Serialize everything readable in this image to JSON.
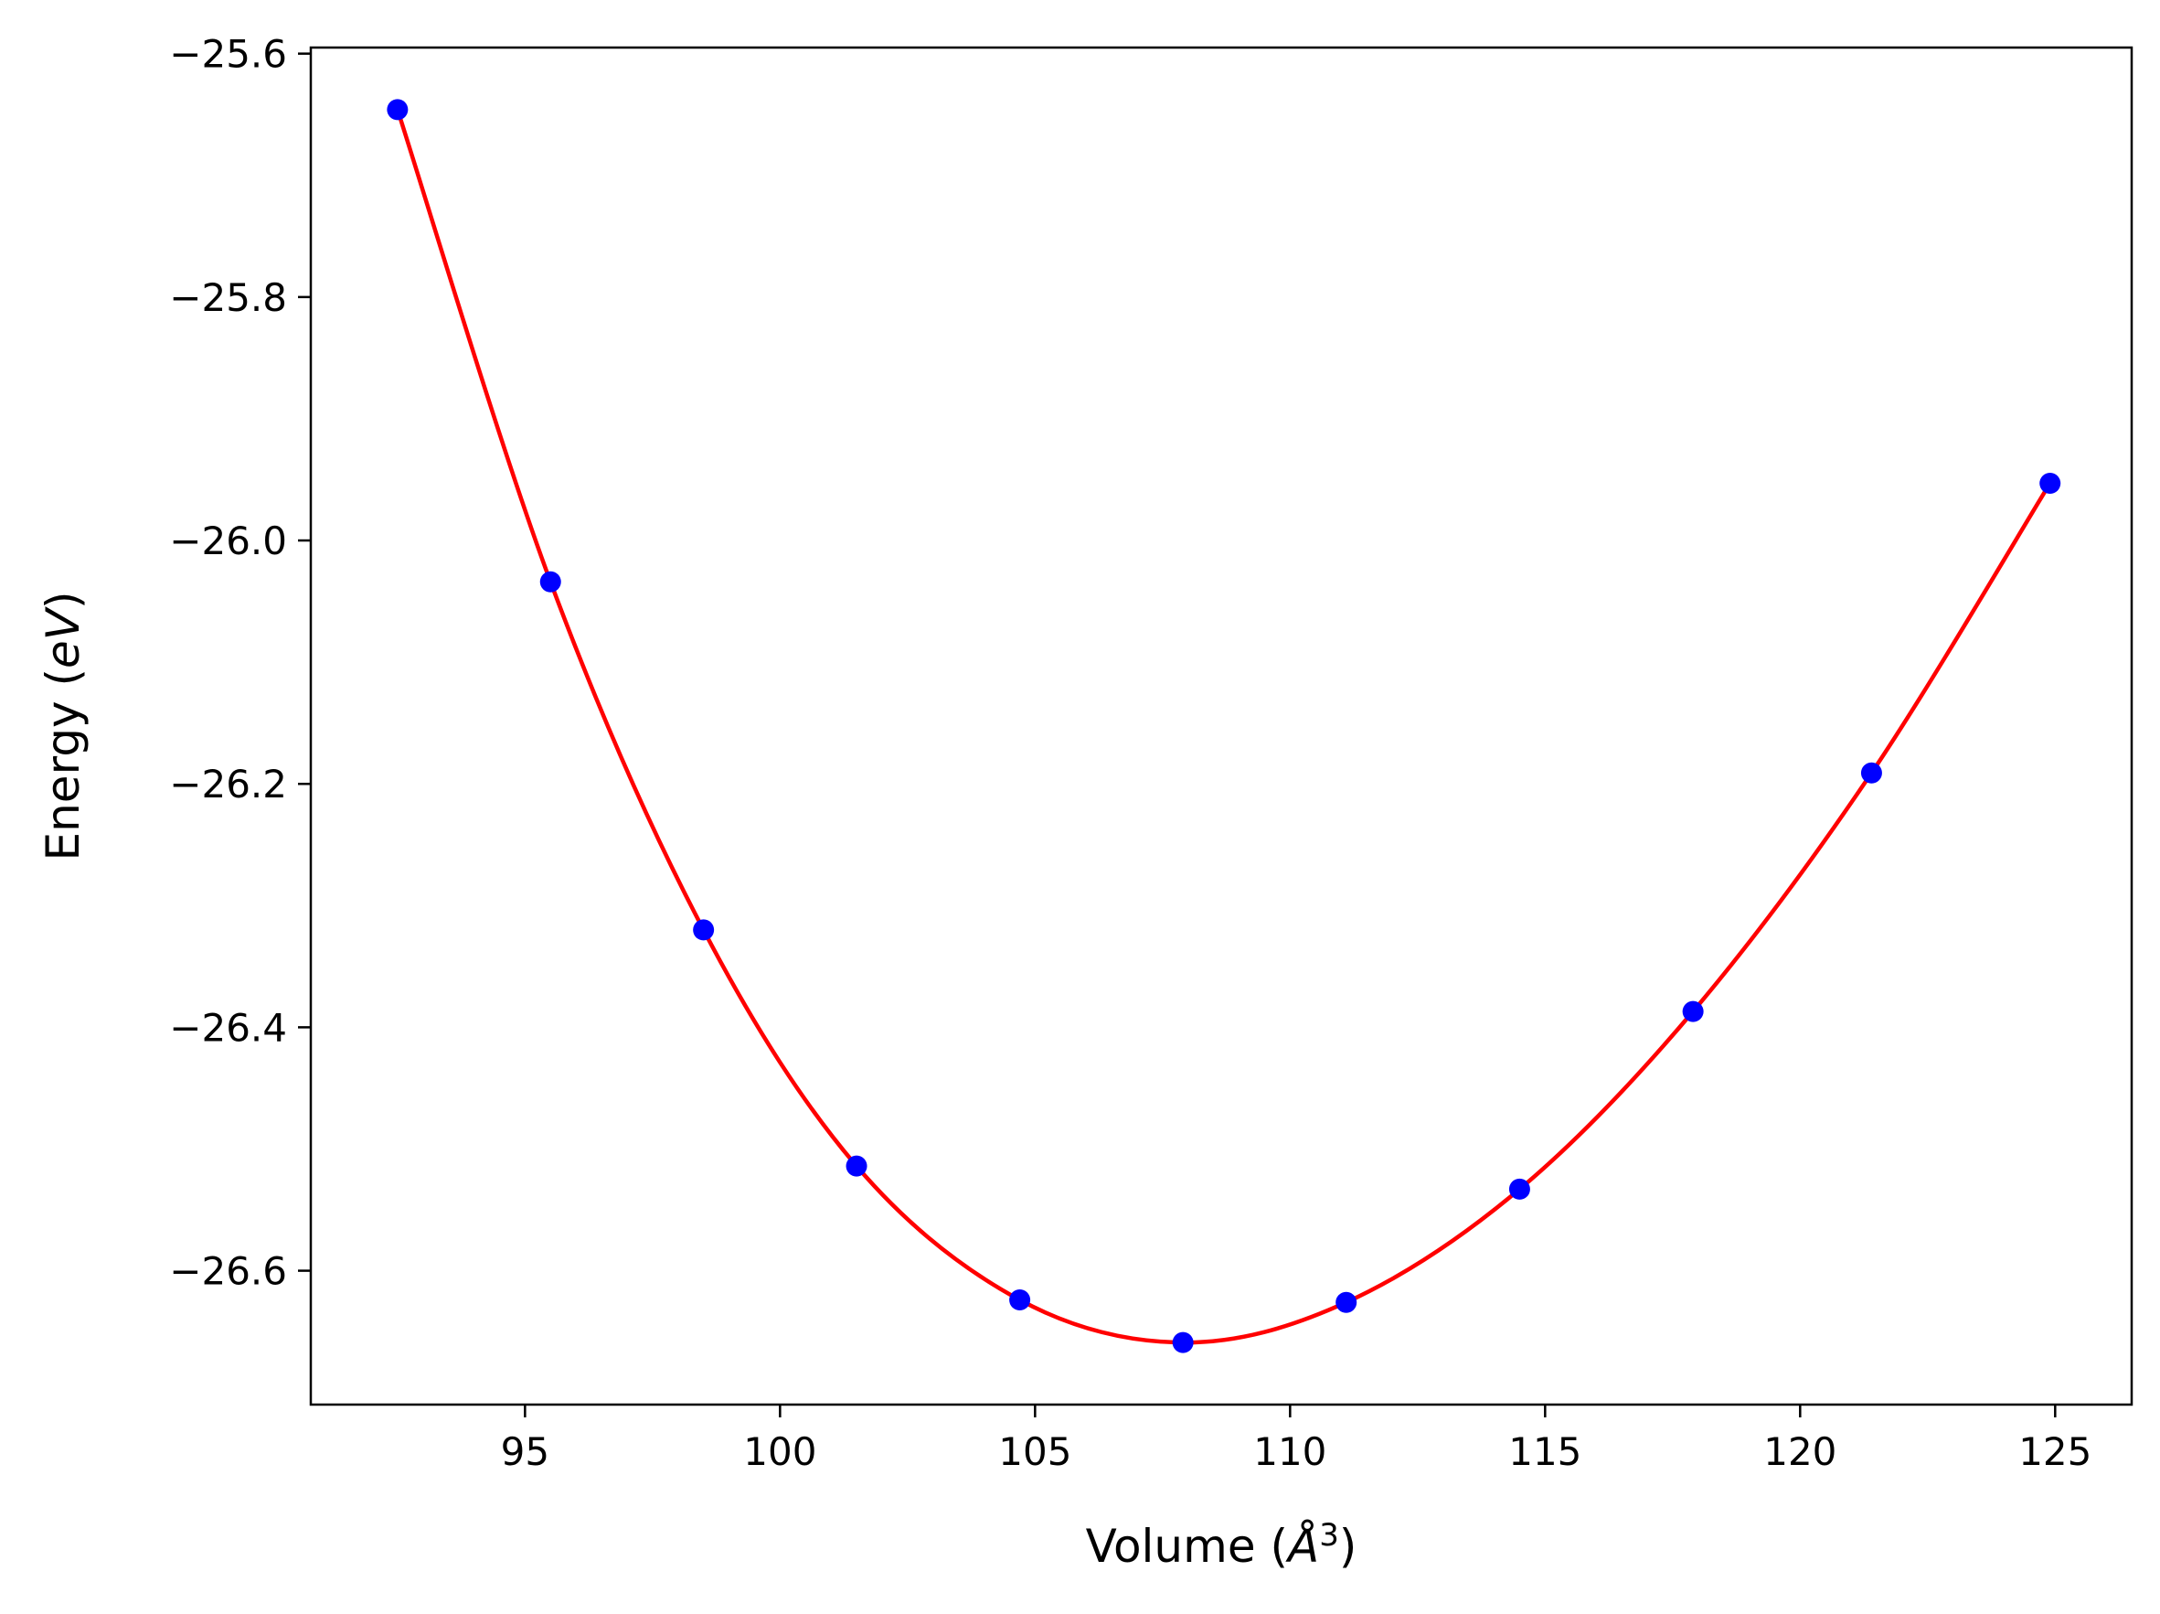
{
  "chart_data": {
    "type": "scatter",
    "xlabel_prefix": "Volume (",
    "xlabel_unit": "Å",
    "xlabel_sup": "3",
    "xlabel_suffix": ")",
    "ylabel_prefix": "Energy (",
    "ylabel_unit": "eV",
    "ylabel_suffix": ")",
    "xlim": [
      90.8,
      126.5
    ],
    "ylim": [
      -26.71,
      -25.595
    ],
    "xticks": [
      95,
      100,
      105,
      110,
      115,
      120,
      125
    ],
    "xtick_labels": [
      "95",
      "100",
      "105",
      "110",
      "115",
      "120",
      "125"
    ],
    "yticks": [
      -25.6,
      -25.8,
      -26.0,
      -26.2,
      -26.4,
      -26.6
    ],
    "ytick_labels": [
      "−25.6",
      "−25.8",
      "−26.0",
      "−26.2",
      "−26.4",
      "−26.6"
    ],
    "grid": false,
    "series": [
      {
        "kind": "points",
        "color": "#0000ff",
        "x": [
          92.5,
          95.5,
          98.5,
          101.5,
          104.7,
          107.9,
          111.1,
          114.5,
          117.9,
          121.4,
          124.9
        ],
        "y": [
          -25.646,
          -26.034,
          -26.32,
          -26.514,
          -26.624,
          -26.659,
          -26.626,
          -26.533,
          -26.387,
          -26.191,
          -25.953
        ]
      },
      {
        "kind": "fit-curve",
        "color": "#ff0000"
      }
    ]
  }
}
